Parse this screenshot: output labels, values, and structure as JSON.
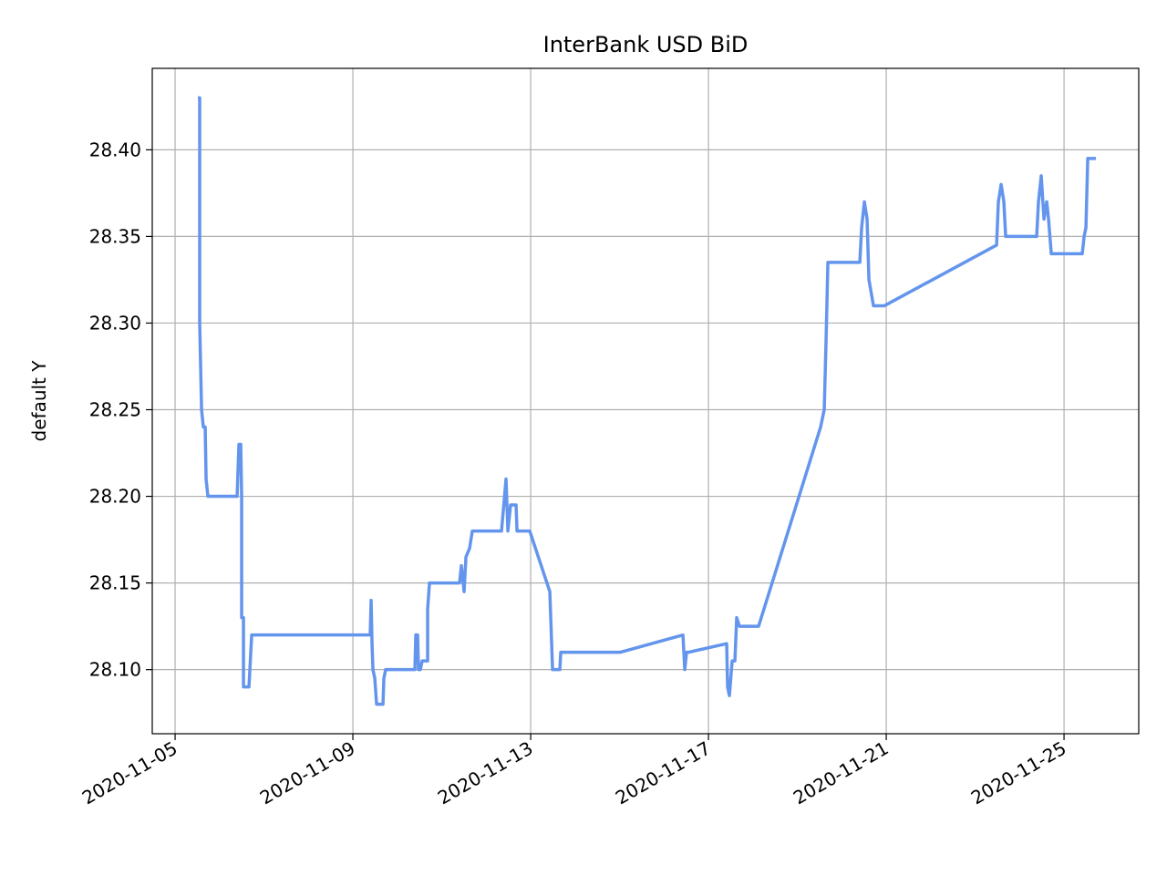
{
  "chart_data": {
    "type": "line",
    "title": "InterBank USD  BiD",
    "y_label": "default Y",
    "color": "#6495ed",
    "grid": true,
    "x": [
      "2020-11-05T12:18",
      "2020-11-05T13:17",
      "2020-11-05T13:17",
      "2020-11-05T14:17",
      "2020-11-05T15:16",
      "2020-11-05T16:15",
      "2020-11-05T16:44",
      "2020-11-05T17:43",
      "2020-11-06T09:29",
      "2020-11-06T10:28",
      "2020-11-06T11:27",
      "2020-11-06T11:56",
      "2020-11-06T11:56",
      "2020-11-06T12:55",
      "2020-11-06T12:55",
      "2020-11-06T15:53",
      "2020-11-06T17:21",
      "2020-11-09T09:21",
      "2020-11-09T09:51",
      "2020-11-09T10:20",
      "2020-11-09T10:50",
      "2020-11-09T11:49",
      "2020-11-09T12:48",
      "2020-11-09T16:15",
      "2020-11-09T16:44",
      "2020-11-09T17:43",
      "2020-11-10T09:28",
      "2020-11-10T09:58",
      "2020-11-10T10:57",
      "2020-11-10T11:26",
      "2020-11-10T12:25",
      "2020-11-10T13:25",
      "2020-11-10T16:22",
      "2020-11-10T16:22",
      "2020-11-10T17:21",
      "2020-11-11T09:36",
      "2020-11-11T10:35",
      "2020-11-11T12:03",
      "2020-11-11T13:03",
      "2020-11-11T15:01",
      "2020-11-11T16:29",
      "2020-11-12T08:15",
      "2020-11-12T10:42",
      "2020-11-12T11:41",
      "2020-11-12T13:10",
      "2020-11-12T16:07",
      "2020-11-12T16:37",
      "2020-11-12T23:30",
      "2020-11-13T10:20",
      "2020-11-13T10:50",
      "2020-11-13T11:49",
      "2020-11-13T15:45",
      "2020-11-13T16:15",
      "2020-11-15T00:14",
      "2020-11-16T10:13",
      "2020-11-16T11:12",
      "2020-11-16T12:11",
      "2020-11-16T13:10",
      "2020-11-17T09:50",
      "2020-11-17T10:20",
      "2020-11-17T11:19",
      "2020-11-17T12:48",
      "2020-11-17T14:16",
      "2020-11-17T15:15",
      "2020-11-17T16:44",
      "2020-11-18T03:04",
      "2020-11-19T12:33",
      "2020-11-19T14:31",
      "2020-11-19T15:30",
      "2020-11-19T16:29",
      "2020-11-20T09:43",
      "2020-11-20T10:42",
      "2020-11-20T12:11",
      "2020-11-20T13:39",
      "2020-11-20T14:39",
      "2020-11-20T17:06",
      "2020-11-20T23:00",
      "2020-11-23T11:34",
      "2020-11-23T12:33",
      "2020-11-23T14:02",
      "2020-11-23T15:30",
      "2020-11-23T16:29",
      "2020-11-24T09:13",
      "2020-11-24T10:12",
      "2020-11-24T11:41",
      "2020-11-24T13:10",
      "2020-11-24T14:39",
      "2020-11-24T15:38",
      "2020-11-24T17:06",
      "2020-11-25T09:50",
      "2020-11-25T10:50",
      "2020-11-25T11:49",
      "2020-11-25T12:48",
      "2020-11-25T17:14"
    ],
    "values": [
      28.43,
      28.43,
      28.3,
      28.25,
      28.24,
      28.24,
      28.21,
      28.2,
      28.2,
      28.23,
      28.23,
      28.2,
      28.13,
      28.13,
      28.09,
      28.09,
      28.12,
      28.12,
      28.14,
      28.115,
      28.1,
      28.095,
      28.08,
      28.08,
      28.095,
      28.1,
      28.1,
      28.12,
      28.12,
      28.1,
      28.1,
      28.105,
      28.105,
      28.135,
      28.15,
      28.15,
      28.16,
      28.145,
      28.165,
      28.17,
      28.18,
      28.18,
      28.21,
      28.18,
      28.195,
      28.195,
      28.18,
      28.18,
      28.145,
      28.13,
      28.1,
      28.1,
      28.11,
      28.11,
      28.12,
      28.1,
      28.11,
      28.11,
      28.115,
      28.09,
      28.085,
      28.105,
      28.105,
      28.13,
      28.125,
      28.125,
      28.24,
      28.25,
      28.29,
      28.335,
      28.335,
      28.355,
      28.37,
      28.36,
      28.325,
      28.31,
      28.31,
      28.345,
      28.37,
      28.38,
      28.37,
      28.35,
      28.35,
      28.37,
      28.385,
      28.36,
      28.37,
      28.36,
      28.34,
      28.34,
      28.35,
      28.355,
      28.395,
      28.395
    ],
    "xlim": [
      "2020-11-04T11:40",
      "2020-11-26T16:20"
    ],
    "xticks": [
      "2020-11-05",
      "2020-11-09",
      "2020-11-13",
      "2020-11-17",
      "2020-11-21",
      "2020-11-25"
    ],
    "ylim": [
      28.063,
      28.447
    ],
    "yticks": [
      {
        "value": 28.1,
        "label": "28.10"
      },
      {
        "value": 28.15,
        "label": "28.15"
      },
      {
        "value": 28.2,
        "label": "28.20"
      },
      {
        "value": 28.25,
        "label": "28.25"
      },
      {
        "value": 28.3,
        "label": "28.30"
      },
      {
        "value": 28.35,
        "label": "28.35"
      },
      {
        "value": 28.4,
        "label": "28.40"
      }
    ]
  }
}
